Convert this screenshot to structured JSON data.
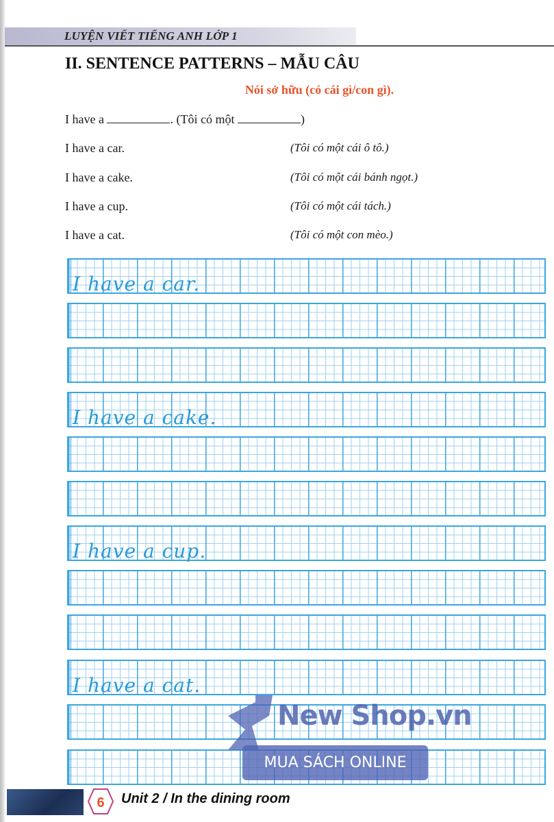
{
  "header": {
    "title": "LUYỆN VIẾT TIẾNG ANH LỚP 1"
  },
  "section": {
    "title": "II. SENTENCE PATTERNS  –  MẪU CÂU",
    "subtitle": "Nói sở hữu (có cái gì/con gì).",
    "pattern": {
      "en_prefix": "I have a",
      "en_suffix": ". (Tôi có một",
      "close": ")"
    },
    "examples": [
      {
        "en": "I have a car.",
        "vi": "(Tôi có một cái ô tô.)"
      },
      {
        "en": "I have a cake.",
        "vi": "(Tôi có một cái bánh ngọt.)"
      },
      {
        "en": "I have a cup.",
        "vi": "(Tôi có một cái tách.)"
      },
      {
        "en": "I have a cat.",
        "vi": "(Tôi có một con mèo.)"
      }
    ]
  },
  "practice": [
    {
      "model": "I have a car."
    },
    {
      "model": "I have a cake."
    },
    {
      "model": "I have a cup."
    },
    {
      "model": "I have a cat."
    }
  ],
  "watermark": {
    "brand": "New Shop.vn",
    "button": "MUA SÁCH ONLINE"
  },
  "footer": {
    "page": "6",
    "title": "Unit 2 / In the dining room"
  },
  "colors": {
    "grid": "#3aa6e0",
    "subtitle": "#e8522a",
    "script": "#2a9ad8"
  }
}
